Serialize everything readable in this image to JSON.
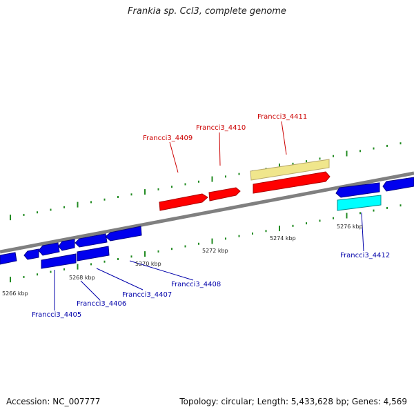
{
  "title": "Frankia sp. Ccl3, complete genome",
  "footer": {
    "accession": "Accession: NC_007777",
    "summary": "Topology: circular; Length: 5,433,628 bp; Genes: 4,569"
  },
  "scale_labels": [
    "5266 kbp",
    "5268 kbp",
    "5270 kbp",
    "5272 kbp",
    "5274 kbp",
    "5276 kbp"
  ],
  "genes_forward": [
    "Francci3_4409",
    "Francci3_4410",
    "Francci3_4411"
  ],
  "genes_reverse": [
    "Francci3_4405",
    "Francci3_4406",
    "Francci3_4407",
    "Francci3_4408",
    "Francci3_4412"
  ],
  "colors": {
    "forward_gene": "#ff0000",
    "reverse_gene": "#0000ee",
    "rna_gene": "#00ffff",
    "feature": "#f0e68c",
    "backbone": "#808080",
    "ticks": "#228b22"
  }
}
